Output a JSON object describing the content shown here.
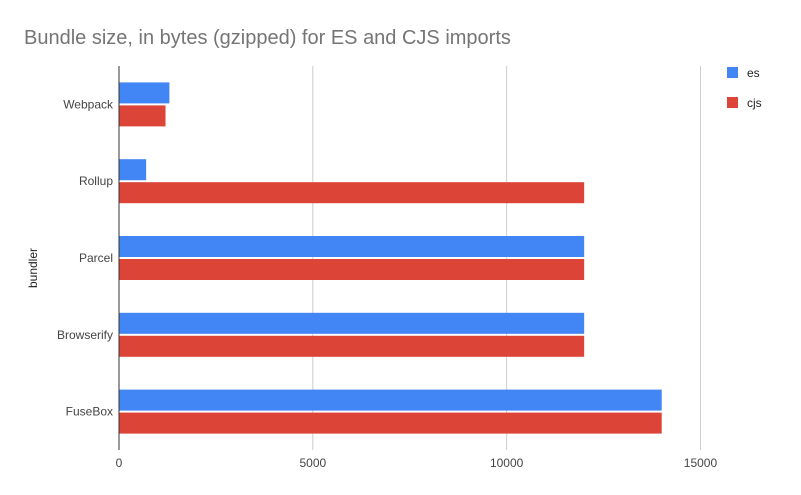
{
  "chart_data": {
    "type": "bar",
    "orientation": "horizontal",
    "title": "Bundle size, in bytes (gzipped) for ES and CJS imports",
    "xlabel": "",
    "ylabel": "bundler",
    "categories": [
      "Webpack",
      "Rollup",
      "Parcel",
      "Browserify",
      "FuseBox"
    ],
    "series": [
      {
        "name": "es",
        "color": "#4285f4",
        "values": [
          1300,
          700,
          12000,
          12000,
          14000
        ]
      },
      {
        "name": "cjs",
        "color": "#db4437",
        "values": [
          1200,
          12000,
          12000,
          12000,
          14000
        ]
      }
    ],
    "xlim": [
      0,
      17000
    ],
    "xticks": [
      0,
      5000,
      10000,
      15000
    ],
    "grid": true,
    "legend_position": "top-right"
  }
}
